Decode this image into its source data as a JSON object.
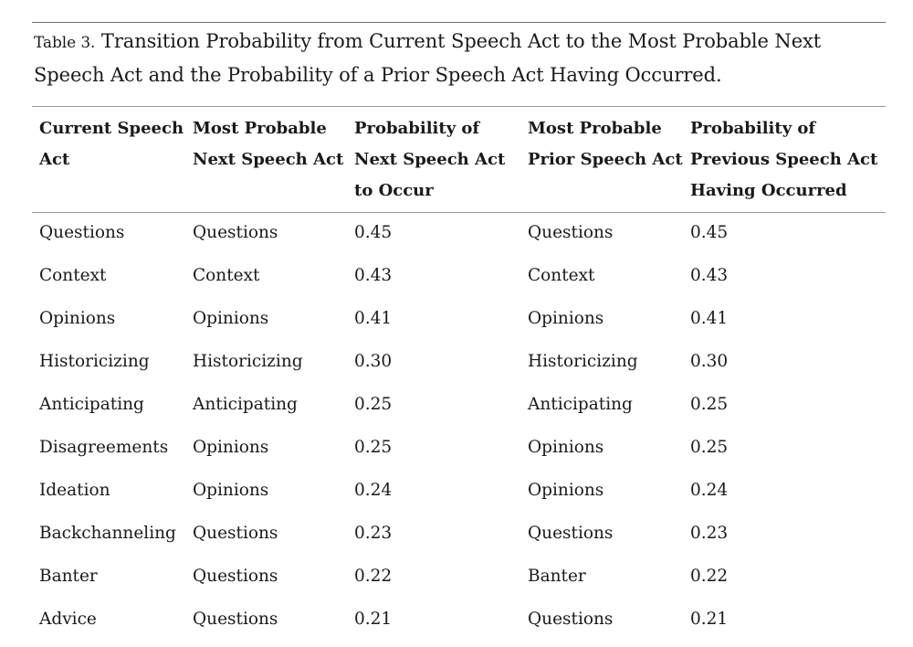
{
  "caption": {
    "label": "Table 3.",
    "text": " Transition Probability from Current Speech Act to the Most Probable Next Speech Act and the Probability of a Prior Speech Act Having Occurred."
  },
  "columns": [
    {
      "lines": [
        "Current Speech",
        "Act"
      ]
    },
    {
      "lines": [
        "Most Probable",
        "Next Speech Act"
      ]
    },
    {
      "lines": [
        "Probability of",
        "Next Speech Act",
        "to Occur"
      ]
    },
    {
      "lines": [
        "Most Probable",
        "Prior Speech Act"
      ]
    },
    {
      "lines": [
        "Probability of",
        "Previous Speech Act",
        "Having Occurred"
      ]
    }
  ],
  "rows": [
    {
      "current": "Questions",
      "next": "Questions",
      "next_prob": "0.45",
      "prior": "Questions",
      "prior_prob": "0.45"
    },
    {
      "current": "Context",
      "next": "Context",
      "next_prob": "0.43",
      "prior": "Context",
      "prior_prob": "0.43"
    },
    {
      "current": "Opinions",
      "next": "Opinions",
      "next_prob": "0.41",
      "prior": "Opinions",
      "prior_prob": "0.41"
    },
    {
      "current": "Historicizing",
      "next": "Historicizing",
      "next_prob": "0.30",
      "prior": "Historicizing",
      "prior_prob": "0.30"
    },
    {
      "current": "Anticipating",
      "next": "Anticipating",
      "next_prob": "0.25",
      "prior": "Anticipating",
      "prior_prob": "0.25"
    },
    {
      "current": "Disagreements",
      "next": "Opinions",
      "next_prob": "0.25",
      "prior": "Opinions",
      "prior_prob": "0.25"
    },
    {
      "current": "Ideation",
      "next": "Opinions",
      "next_prob": "0.24",
      "prior": "Opinions",
      "prior_prob": "0.24"
    },
    {
      "current": "Backchanneling",
      "next": "Questions",
      "next_prob": "0.23",
      "prior": "Questions",
      "prior_prob": "0.23"
    },
    {
      "current": "Banter",
      "next": "Questions",
      "next_prob": "0.22",
      "prior": "Banter",
      "prior_prob": "0.22"
    },
    {
      "current": "Advice",
      "next": "Questions",
      "next_prob": "0.21",
      "prior": "Questions",
      "prior_prob": "0.21"
    }
  ]
}
